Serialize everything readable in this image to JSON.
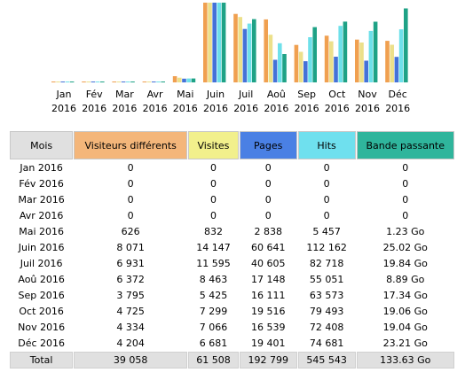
{
  "colors": {
    "visitors": "#f0a050",
    "visits": "#ece08a",
    "pages": "#4472d8",
    "hits": "#6ee0ea",
    "bandwidth": "#1ea286"
  },
  "chart_data": {
    "type": "bar",
    "categories": [
      [
        "Jan",
        "2016"
      ],
      [
        "Fév",
        "2016"
      ],
      [
        "Mar",
        "2016"
      ],
      [
        "Avr",
        "2016"
      ],
      [
        "Mai",
        "2016"
      ],
      [
        "Juin",
        "2016"
      ],
      [
        "Juil",
        "2016"
      ],
      [
        "Aoû",
        "2016"
      ],
      [
        "Sep",
        "2016"
      ],
      [
        "Oct",
        "2016"
      ],
      [
        "Nov",
        "2016"
      ],
      [
        "Déc",
        "2016"
      ]
    ],
    "series": [
      {
        "key": "visitors",
        "values": [
          0,
          0,
          0,
          0,
          626,
          8071,
          6931,
          6372,
          3795,
          4725,
          4334,
          4204
        ]
      },
      {
        "key": "visits",
        "values": [
          0,
          0,
          0,
          0,
          832,
          14147,
          11595,
          8463,
          5425,
          7299,
          7066,
          6681
        ]
      },
      {
        "key": "pages",
        "values": [
          0,
          0,
          0,
          0,
          2838,
          60641,
          40605,
          17148,
          16111,
          19516,
          16539,
          19401
        ]
      },
      {
        "key": "hits",
        "values": [
          0,
          0,
          0,
          0,
          5457,
          112162,
          82718,
          55051,
          63573,
          79493,
          72408,
          74681
        ]
      },
      {
        "key": "bandwidth",
        "values": [
          0,
          0,
          0,
          0,
          1.23,
          25.02,
          19.84,
          8.89,
          17.34,
          19.06,
          19.04,
          23.21
        ]
      }
    ],
    "ylim_note": "each series scaled to its own maximum"
  },
  "table": {
    "headers": {
      "month": "Mois",
      "visitors": "Visiteurs différents",
      "visits": "Visites",
      "pages": "Pages",
      "hits": "Hits",
      "bandwidth": "Bande passante"
    },
    "rows": [
      {
        "month": "Jan 2016",
        "visitors": "0",
        "visits": "0",
        "pages": "0",
        "hits": "0",
        "bandwidth": "0"
      },
      {
        "month": "Fév 2016",
        "visitors": "0",
        "visits": "0",
        "pages": "0",
        "hits": "0",
        "bandwidth": "0"
      },
      {
        "month": "Mar 2016",
        "visitors": "0",
        "visits": "0",
        "pages": "0",
        "hits": "0",
        "bandwidth": "0"
      },
      {
        "month": "Avr 2016",
        "visitors": "0",
        "visits": "0",
        "pages": "0",
        "hits": "0",
        "bandwidth": "0"
      },
      {
        "month": "Mai 2016",
        "visitors": "626",
        "visits": "832",
        "pages": "2 838",
        "hits": "5 457",
        "bandwidth": "1.23 Go"
      },
      {
        "month": "Juin 2016",
        "visitors": "8 071",
        "visits": "14 147",
        "pages": "60 641",
        "hits": "112 162",
        "bandwidth": "25.02 Go"
      },
      {
        "month": "Juil 2016",
        "visitors": "6 931",
        "visits": "11 595",
        "pages": "40 605",
        "hits": "82 718",
        "bandwidth": "19.84 Go"
      },
      {
        "month": "Aoû 2016",
        "visitors": "6 372",
        "visits": "8 463",
        "pages": "17 148",
        "hits": "55 051",
        "bandwidth": "8.89 Go"
      },
      {
        "month": "Sep 2016",
        "visitors": "3 795",
        "visits": "5 425",
        "pages": "16 111",
        "hits": "63 573",
        "bandwidth": "17.34 Go"
      },
      {
        "month": "Oct 2016",
        "visitors": "4 725",
        "visits": "7 299",
        "pages": "19 516",
        "hits": "79 493",
        "bandwidth": "19.06 Go"
      },
      {
        "month": "Nov 2016",
        "visitors": "4 334",
        "visits": "7 066",
        "pages": "16 539",
        "hits": "72 408",
        "bandwidth": "19.04 Go"
      },
      {
        "month": "Déc 2016",
        "visitors": "4 204",
        "visits": "6 681",
        "pages": "19 401",
        "hits": "74 681",
        "bandwidth": "23.21 Go"
      }
    ],
    "total": {
      "month": "Total",
      "visitors": "39 058",
      "visits": "61 508",
      "pages": "192 799",
      "hits": "545 543",
      "bandwidth": "133.63 Go"
    }
  }
}
